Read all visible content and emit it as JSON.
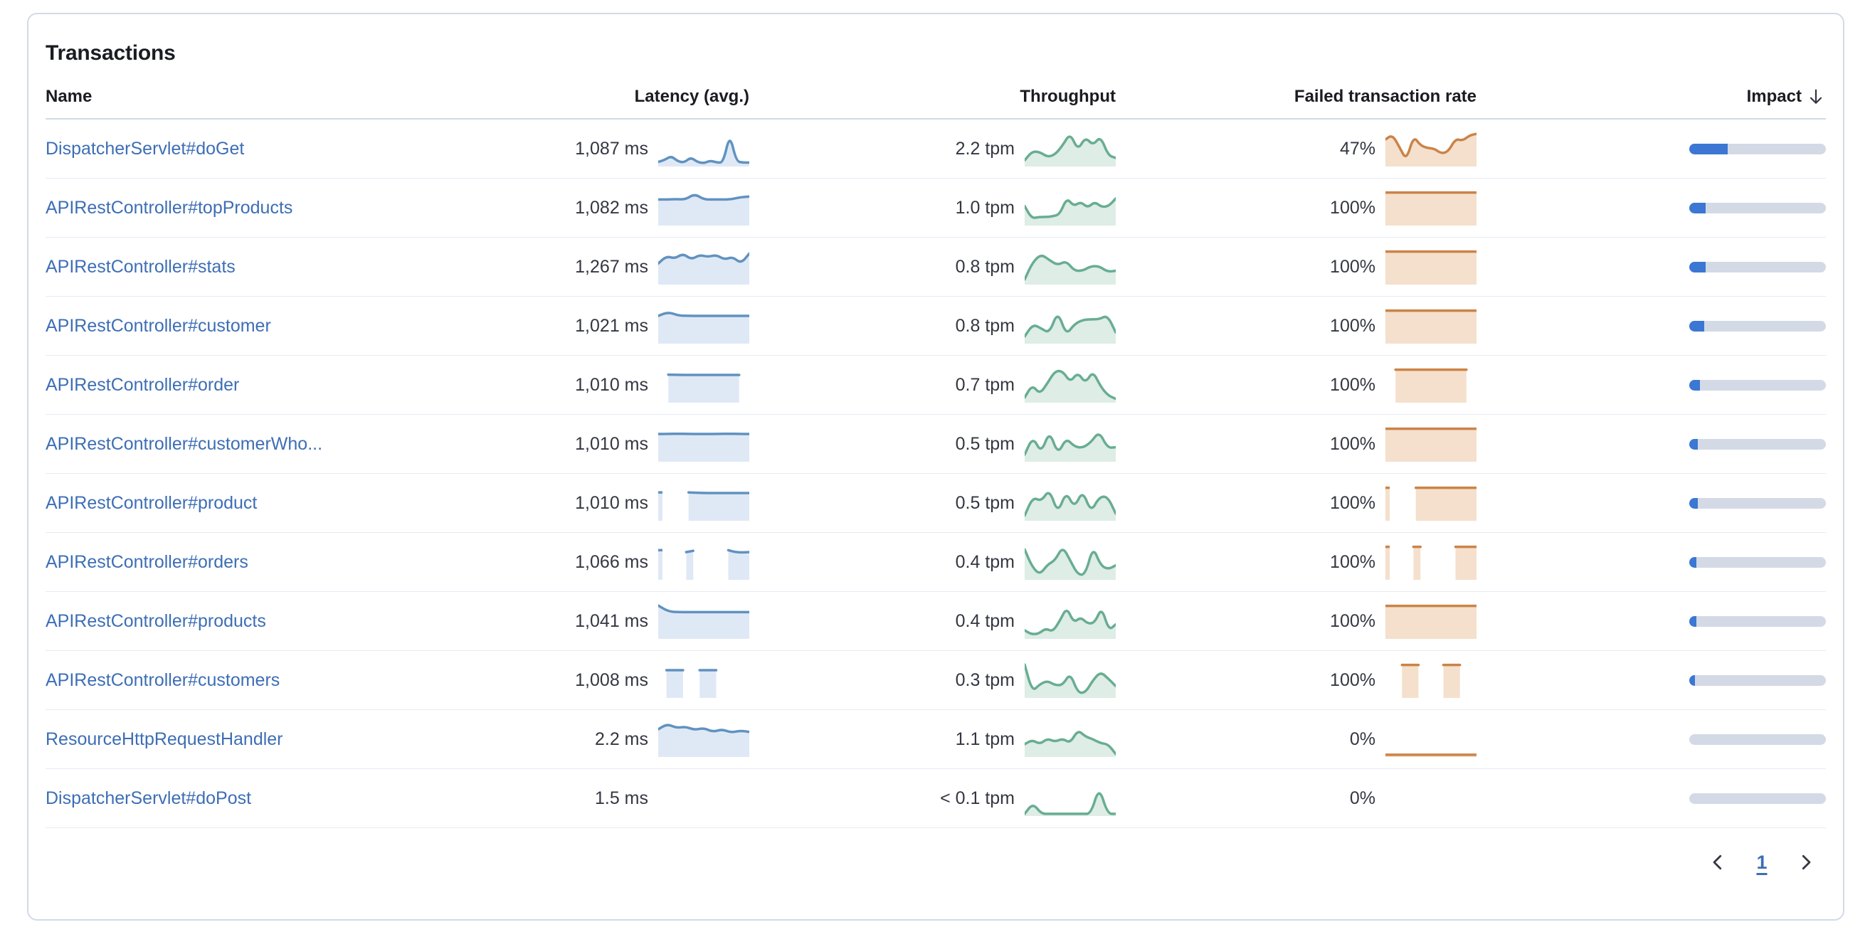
{
  "panel": {
    "title": "Transactions"
  },
  "colors": {
    "link": "#3D6EB5",
    "header_text": "#1A1C21",
    "value_text": "#343741",
    "row_divider": "#E6EBF4",
    "header_divider": "#D3DAE6",
    "impact_bar_fill": "#3B77D3",
    "impact_bar_track": "#D3DAE6",
    "latency_spark": {
      "stroke": "#6092C0",
      "fill": "#DFE9F5"
    },
    "throughput_spark": {
      "stroke": "#68AD92",
      "fill": "#DEEDE5"
    },
    "failed_spark": {
      "stroke": "#CB8347",
      "fill": "#F4E0CC"
    }
  },
  "table": {
    "columns": [
      {
        "id": "name",
        "label": "Name",
        "align": "left",
        "sortable": true
      },
      {
        "id": "latency",
        "label": "Latency (avg.)",
        "align": "right",
        "sortable": true
      },
      {
        "id": "throughput",
        "label": "Throughput",
        "align": "right",
        "sortable": true
      },
      {
        "id": "failed",
        "label": "Failed transaction rate",
        "align": "right",
        "sortable": true
      },
      {
        "id": "impact",
        "label": "Impact",
        "align": "right",
        "sortable": true,
        "sort": "desc",
        "sort_icon": "arrow-down-icon"
      }
    ],
    "rows": [
      {
        "name": "DispatcherServlet#doGet",
        "latency": "1,087 ms",
        "throughput": "2.2 tpm",
        "failed_rate": "47%",
        "impact_pct": 28,
        "latency_spark": [
          0.1,
          0.16,
          0.28,
          0.12,
          0.08,
          0.24,
          0.1,
          0.06,
          0.14,
          0.08,
          0.08,
          0.95,
          0.12,
          0.08,
          0.08
        ],
        "throughput_spark": [
          0.15,
          0.42,
          0.4,
          0.25,
          0.32,
          0.6,
          0.97,
          0.45,
          0.85,
          0.6,
          0.88,
          0.3,
          0.22
        ],
        "failed_spark": [
          0.78,
          0.92,
          0.55,
          0.15,
          0.88,
          0.6,
          0.52,
          0.5,
          0.35,
          0.42,
          0.8,
          0.74,
          0.9,
          0.95
        ]
      },
      {
        "name": "APIRestController#topProducts",
        "latency": "1,082 ms",
        "throughput": "1.0 tpm",
        "failed_rate": "100%",
        "impact_pct": 12,
        "latency_spark": [
          0.75,
          0.75,
          0.76,
          0.75,
          0.92,
          0.75,
          0.75,
          0.75,
          0.75,
          0.82,
          0.84
        ],
        "throughput_spark": [
          0.55,
          0.18,
          0.22,
          0.22,
          0.24,
          0.3,
          0.8,
          0.55,
          0.68,
          0.5,
          0.68,
          0.52,
          0.55,
          0.78
        ],
        "failed_spark": [
          0.96,
          0.96,
          0.96,
          0.96,
          0.96,
          0.96,
          0.96,
          0.96,
          0.96,
          0.96
        ]
      },
      {
        "name": "APIRestController#stats",
        "latency": "1,267 ms",
        "throughput": "0.8 tpm",
        "failed_rate": "100%",
        "impact_pct": 12,
        "latency_spark": [
          0.6,
          0.82,
          0.75,
          0.9,
          0.72,
          0.86,
          0.8,
          0.86,
          0.72,
          0.8,
          0.6,
          0.9
        ],
        "throughput_spark": [
          0.12,
          0.65,
          0.88,
          0.7,
          0.55,
          0.68,
          0.38,
          0.38,
          0.52,
          0.52,
          0.35,
          0.38
        ],
        "failed_spark": [
          0.96,
          0.96,
          0.96,
          0.96,
          0.96,
          0.96,
          0.96,
          0.96,
          0.96,
          0.96
        ]
      },
      {
        "name": "APIRestController#customer",
        "latency": "1,021 ms",
        "throughput": "0.8 tpm",
        "failed_rate": "100%",
        "impact_pct": 11,
        "latency_spark": [
          0.8,
          0.92,
          0.81,
          0.8,
          0.8,
          0.8,
          0.8,
          0.8,
          0.8,
          0.8
        ],
        "throughput_spark": [
          0.18,
          0.55,
          0.42,
          0.28,
          0.95,
          0.22,
          0.55,
          0.68,
          0.7,
          0.7,
          0.82,
          0.3
        ],
        "failed_spark": [
          0.96,
          0.96,
          0.96,
          0.96,
          0.96,
          0.96,
          0.96,
          0.96,
          0.96,
          0.96
        ]
      },
      {
        "name": "APIRestController#order",
        "latency": "1,010 ms",
        "throughput": "0.7 tpm",
        "failed_rate": "100%",
        "impact_pct": 8,
        "latency_spark": [
          null,
          0.81,
          0.8,
          0.8,
          0.8,
          0.8,
          0.8,
          0.8,
          0.8,
          null
        ],
        "throughput_spark": [
          0.12,
          0.5,
          0.22,
          0.55,
          0.92,
          0.92,
          0.58,
          0.88,
          0.55,
          0.92,
          0.45,
          0.18,
          0.08
        ],
        "failed_spark": [
          null,
          0.96,
          0.96,
          0.96,
          0.96,
          0.96,
          0.96,
          0.96,
          0.96,
          null
        ]
      },
      {
        "name": "APIRestController#customerWho...",
        "latency": "1,010 ms",
        "throughput": "0.5 tpm",
        "failed_rate": "100%",
        "impact_pct": 6.5,
        "latency_spark": [
          0.8,
          0.8,
          0.81,
          0.8,
          0.8,
          0.8,
          0.8,
          0.81,
          0.8,
          0.8
        ],
        "throughput_spark": [
          0.18,
          0.72,
          0.22,
          0.9,
          0.18,
          0.68,
          0.42,
          0.38,
          0.55,
          0.88,
          0.38,
          0.4
        ],
        "failed_spark": [
          0.96,
          0.96,
          0.96,
          0.96,
          0.96,
          0.96,
          0.96,
          0.96,
          0.96,
          0.96
        ]
      },
      {
        "name": "APIRestController#product",
        "latency": "1,010 ms",
        "throughput": "0.5 tpm",
        "failed_rate": "100%",
        "impact_pct": 6,
        "latency_spark": [
          0.82,
          null,
          null,
          null,
          0.82,
          0.81,
          0.8,
          0.8,
          0.8,
          0.8,
          0.8,
          0.8,
          0.8
        ],
        "throughput_spark": [
          0.12,
          0.68,
          0.55,
          0.92,
          0.18,
          0.85,
          0.35,
          0.88,
          0.22,
          0.68,
          0.7,
          0.18
        ],
        "failed_spark": [
          0.96,
          null,
          null,
          null,
          0.96,
          0.96,
          0.96,
          0.96,
          0.96,
          0.96,
          0.96,
          0.96,
          0.96
        ]
      },
      {
        "name": "APIRestController#orders",
        "latency": "1,066 ms",
        "throughput": "0.4 tpm",
        "failed_rate": "100%",
        "impact_pct": 5,
        "latency_spark": [
          0.86,
          null,
          null,
          null,
          0.8,
          0.84,
          null,
          null,
          null,
          null,
          0.86,
          0.8,
          0.79,
          0.8
        ],
        "throughput_spark": [
          0.88,
          0.35,
          0.12,
          0.42,
          0.55,
          0.97,
          0.55,
          0.12,
          0.12,
          0.97,
          0.4,
          0.28,
          0.4
        ],
        "failed_spark": [
          0.96,
          null,
          null,
          null,
          0.96,
          0.96,
          null,
          null,
          null,
          null,
          0.96,
          0.96,
          0.96,
          0.96
        ]
      },
      {
        "name": "APIRestController#products",
        "latency": "1,041 ms",
        "throughput": "0.4 tpm",
        "failed_rate": "100%",
        "impact_pct": 5,
        "latency_spark": [
          0.97,
          0.79,
          0.77,
          0.77,
          0.77,
          0.77,
          0.77,
          0.77,
          0.77,
          0.77
        ],
        "throughput_spark": [
          0.22,
          0.1,
          0.12,
          0.28,
          0.18,
          0.5,
          0.92,
          0.45,
          0.62,
          0.42,
          0.45,
          0.92,
          0.22,
          0.4
        ],
        "failed_spark": [
          0.96,
          0.96,
          0.96,
          0.96,
          0.96,
          0.96,
          0.96,
          0.96,
          0.96,
          0.96
        ]
      },
      {
        "name": "APIRestController#customers",
        "latency": "1,008 ms",
        "throughput": "0.3 tpm",
        "failed_rate": "100%",
        "impact_pct": 4,
        "latency_spark": [
          null,
          0.8,
          0.8,
          0.8,
          null,
          0.8,
          0.8,
          0.8,
          null,
          null,
          null,
          null
        ],
        "throughput_spark": [
          0.97,
          0.15,
          0.38,
          0.48,
          0.35,
          0.35,
          0.72,
          0.12,
          0.12,
          0.5,
          0.75,
          0.55,
          0.32
        ],
        "failed_spark": [
          null,
          null,
          0.96,
          0.96,
          0.96,
          null,
          null,
          0.96,
          0.96,
          0.96,
          null,
          null
        ]
      },
      {
        "name": "ResourceHttpRequestHandler",
        "latency": "2.2 ms",
        "throughput": "1.1 tpm",
        "failed_rate": "0%",
        "impact_pct": 0,
        "latency_spark": [
          0.8,
          0.96,
          0.84,
          0.88,
          0.78,
          0.84,
          0.72,
          0.8,
          0.7,
          0.76,
          0.72
        ],
        "throughput_spark": [
          0.35,
          0.48,
          0.35,
          0.52,
          0.42,
          0.52,
          0.38,
          0.78,
          0.58,
          0.5,
          0.38,
          0.35,
          0.05
        ],
        "failed_spark": [
          0.03,
          0.03,
          0.03,
          0.03,
          0.03,
          0.03,
          0.03,
          0.03,
          0.03,
          0.03
        ]
      },
      {
        "name": "DispatcherServlet#doPost",
        "latency": "1.5 ms",
        "throughput": "< 0.1 tpm",
        "failed_rate": "0%",
        "impact_pct": 0,
        "latency_spark": [],
        "throughput_spark": [
          0.03,
          0.35,
          0.03,
          0.03,
          0.03,
          0.03,
          0.03,
          0.03,
          0.03,
          0.85,
          0.03,
          0.03
        ],
        "failed_spark": []
      }
    ]
  },
  "pagination": {
    "prev_icon": "chevron-left-icon",
    "page": "1",
    "next_icon": "chevron-right-icon"
  }
}
